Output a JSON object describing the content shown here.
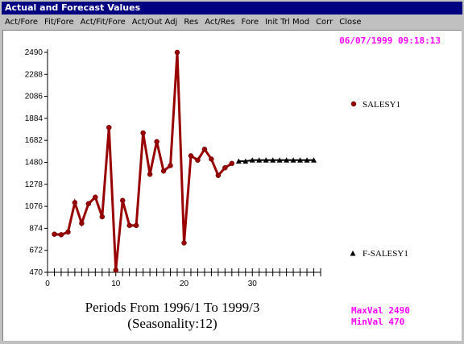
{
  "window": {
    "title": "Actual and Forecast Values"
  },
  "menu": [
    "Act/Fore",
    "Fit/Fore",
    "Act/Fit/Fore",
    "Act/Out Adj",
    "Res",
    "Act/Res",
    "Fore",
    "Init Trl Mod",
    "Corr",
    "Close"
  ],
  "timestamp": "06/07/1999  09:18:13",
  "footer": {
    "line1": "Periods From 1996/1 To 1999/3",
    "line2": "(Seasonality:12)",
    "maxval": "MaxVal 2490",
    "minval": "MinVal 470"
  },
  "colors": {
    "actual": "#990000",
    "forecast": "#000000",
    "accent": "#ff00ff",
    "titlebar": "#000080"
  },
  "chart_data": {
    "type": "line",
    "xlim": [
      0,
      40
    ],
    "ylim": [
      470,
      2490
    ],
    "x_ticks": [
      0,
      10,
      20,
      30
    ],
    "y_ticks": [
      470,
      672,
      874,
      1076,
      1278,
      1480,
      1682,
      1884,
      2086,
      2288,
      2490
    ],
    "series": [
      {
        "name": "SALESY1",
        "marker": "circle",
        "x": [
          1,
          2,
          3,
          4,
          5,
          6,
          7,
          8,
          9,
          10,
          11,
          12,
          13,
          14,
          15,
          16,
          17,
          18,
          19,
          20,
          21,
          22,
          23,
          24,
          25,
          26,
          27
        ],
        "values": [
          820,
          815,
          840,
          1110,
          920,
          1100,
          1160,
          980,
          1800,
          490,
          1130,
          900,
          900,
          1750,
          1370,
          1670,
          1400,
          1450,
          2490,
          740,
          1540,
          1500,
          1600,
          1510,
          1360,
          1430,
          1470
        ]
      },
      {
        "name": "F-SALESY1",
        "marker": "triangle",
        "x": [
          28,
          29,
          30,
          31,
          32,
          33,
          34,
          35,
          36,
          37,
          38,
          39
        ],
        "values": [
          1490,
          1490,
          1500,
          1500,
          1500,
          1500,
          1500,
          1500,
          1500,
          1500,
          1500,
          1500
        ]
      }
    ]
  }
}
